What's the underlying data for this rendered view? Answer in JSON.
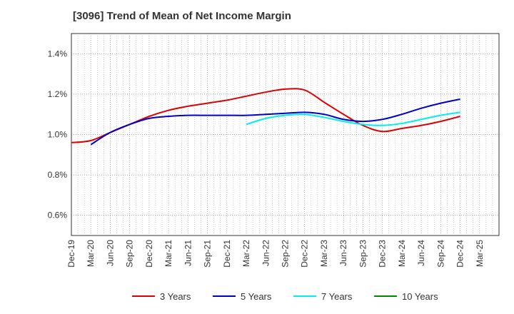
{
  "chart_data": {
    "type": "line",
    "title": "[3096]  Trend of Mean of Net Income Margin",
    "xlabel": "",
    "ylabel": "",
    "x_tick_labels": [
      "Dec-19",
      "Mar-20",
      "Jun-20",
      "Sep-20",
      "Dec-20",
      "Mar-21",
      "Jun-21",
      "Sep-21",
      "Dec-21",
      "Mar-22",
      "Jun-22",
      "Sep-22",
      "Dec-22",
      "Mar-23",
      "Jun-23",
      "Sep-23",
      "Dec-23",
      "Mar-24",
      "Jun-24",
      "Sep-24",
      "Dec-24",
      "Mar-25"
    ],
    "y_tick_labels": [
      "0.6%",
      "0.8%",
      "1.0%",
      "1.2%",
      "1.4%"
    ],
    "y_ticks": [
      0.6,
      0.8,
      1.0,
      1.2,
      1.4
    ],
    "ylim": [
      0.5,
      1.5
    ],
    "y_unit": "%",
    "grid": true,
    "legend_position": "bottom",
    "series": [
      {
        "name": "3 Years",
        "color": "#dd0000",
        "x": [
          "Dec-19",
          "Mar-20",
          "Jun-20",
          "Sep-20",
          "Dec-20",
          "Mar-21",
          "Jun-21",
          "Sep-21",
          "Dec-21",
          "Mar-22",
          "Jun-22",
          "Sep-22",
          "Dec-22",
          "Mar-23",
          "Jun-23",
          "Sep-23",
          "Dec-23",
          "Mar-24",
          "Jun-24",
          "Sep-24",
          "Dec-24"
        ],
        "values": [
          0.96,
          0.97,
          1.01,
          1.05,
          1.09,
          1.12,
          1.14,
          1.155,
          1.17,
          1.19,
          1.21,
          1.225,
          1.22,
          1.16,
          1.1,
          1.045,
          1.015,
          1.03,
          1.045,
          1.065,
          1.09
        ]
      },
      {
        "name": "5 Years",
        "color": "#0000cc",
        "x": [
          "Mar-20",
          "Jun-20",
          "Sep-20",
          "Dec-20",
          "Mar-21",
          "Jun-21",
          "Sep-21",
          "Dec-21",
          "Mar-22",
          "Jun-22",
          "Sep-22",
          "Dec-22",
          "Mar-23",
          "Jun-23",
          "Sep-23",
          "Dec-23",
          "Mar-24",
          "Jun-24",
          "Sep-24",
          "Dec-24"
        ],
        "values": [
          0.95,
          1.01,
          1.05,
          1.08,
          1.09,
          1.095,
          1.095,
          1.095,
          1.095,
          1.1,
          1.105,
          1.11,
          1.1,
          1.075,
          1.065,
          1.075,
          1.1,
          1.13,
          1.155,
          1.175
        ]
      },
      {
        "name": "7 Years",
        "color": "#00eeee",
        "x": [
          "Mar-22",
          "Jun-22",
          "Sep-22",
          "Dec-22",
          "Mar-23",
          "Jun-23",
          "Sep-23",
          "Dec-23",
          "Mar-24",
          "Jun-24",
          "Sep-24",
          "Dec-24"
        ],
        "values": [
          1.05,
          1.08,
          1.095,
          1.1,
          1.085,
          1.065,
          1.05,
          1.045,
          1.055,
          1.075,
          1.095,
          1.11
        ]
      },
      {
        "name": "10 Years",
        "color": "#008800",
        "x": [],
        "values": []
      }
    ]
  }
}
